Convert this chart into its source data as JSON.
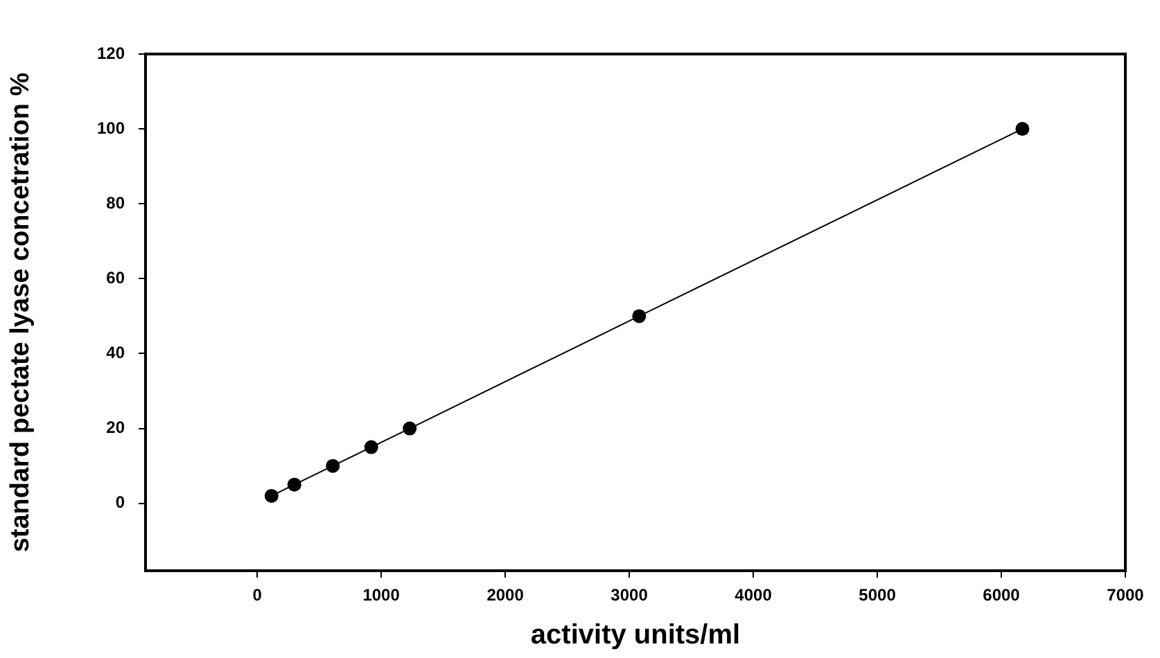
{
  "chart_data": {
    "type": "line",
    "xlabel": "activity units/ml",
    "ylabel": "standard pectate lyase concetration %",
    "x": [
      116,
      300,
      610,
      920,
      1230,
      3080,
      6170
    ],
    "series": [
      {
        "color": "#000000",
        "values": [
          2,
          5,
          10,
          15,
          20,
          50,
          100
        ]
      }
    ],
    "xlim": [
      -900,
      7000
    ],
    "xticks": [
      0,
      1000,
      2000,
      3000,
      4000,
      5000,
      6000,
      7000
    ],
    "ylim": [
      -18,
      120
    ],
    "yticks": [
      0,
      20,
      40,
      60,
      80,
      100,
      120
    ],
    "marker": "circle",
    "line_style": "solid",
    "grid": false,
    "legend": false
  }
}
